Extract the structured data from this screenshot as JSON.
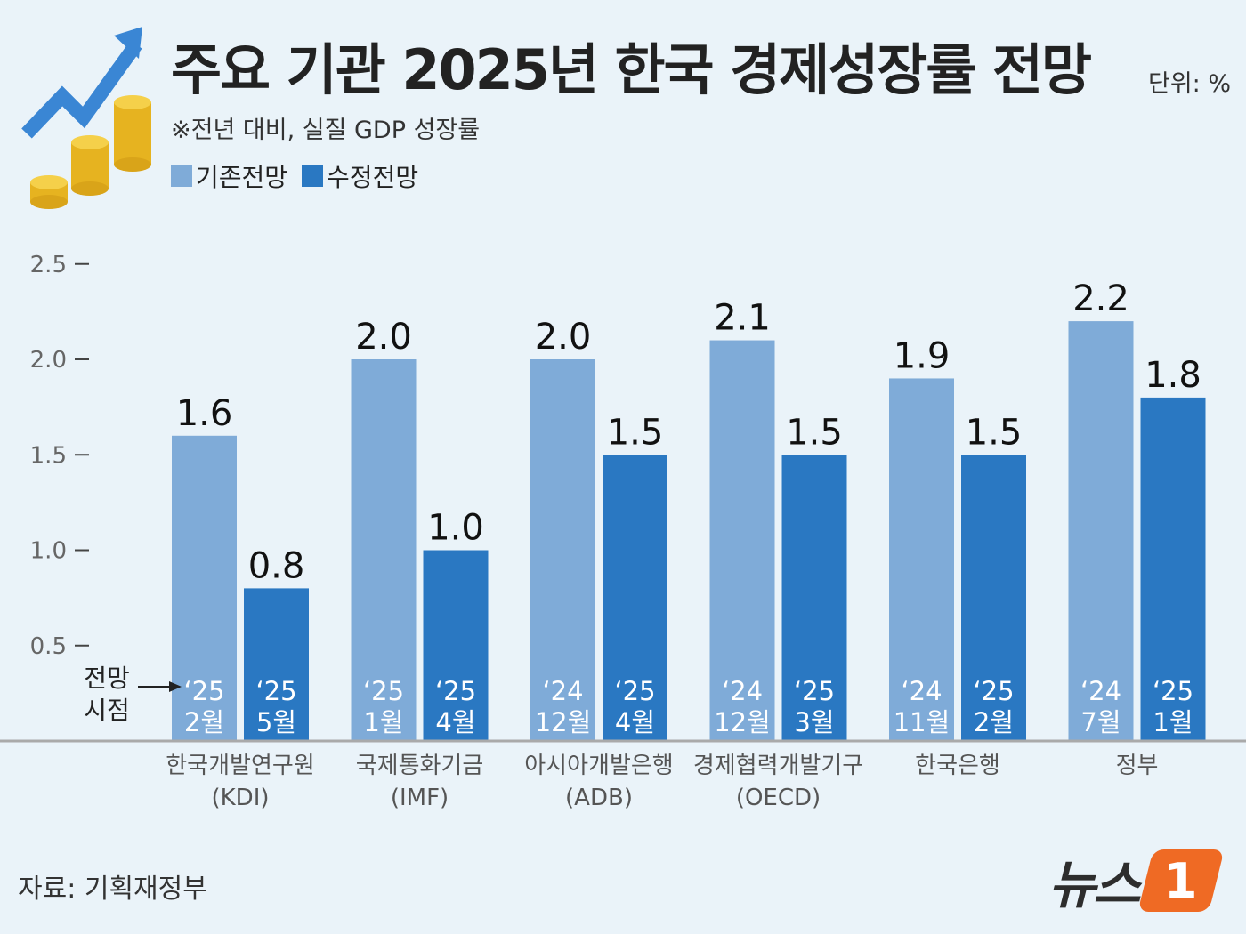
{
  "title": "주요 기관 2025년 한국 경제성장률 전망",
  "unit": "단위: %",
  "subtitle": "※전년 대비, 실질 GDP 성장률",
  "legend": {
    "previous": "기존전망",
    "revised": "수정전망"
  },
  "annotation": {
    "line1": "전망",
    "line2": "시점"
  },
  "source": "자료: 기획재정부",
  "logo": {
    "text": "뉴스",
    "mark": "1"
  },
  "colors": {
    "previous": "#7fabd8",
    "revised": "#2a78c2",
    "background": "#eaf3f9",
    "coin": "#f2c230",
    "arrow": "#3a86d4"
  },
  "chart_data": {
    "type": "bar",
    "title": "주요 기관 2025년 한국 경제성장률 전망",
    "subtitle": "※전년 대비, 실질 GDP 성장률",
    "unit": "단위: %",
    "ylim": [
      0,
      2.5
    ],
    "yticks": [
      "0.5",
      "1.0",
      "1.5",
      "2.0",
      "2.5"
    ],
    "categories": [
      [
        "한국개발연구원",
        "(KDI)"
      ],
      [
        "국제통화기금",
        "(IMF)"
      ],
      [
        "아시아개발은행",
        "(ADB)"
      ],
      [
        "경제협력개발기구",
        "(OECD)"
      ],
      [
        "한국은행",
        ""
      ],
      [
        "정부",
        ""
      ]
    ],
    "series": [
      {
        "name": "기존전망",
        "values": [
          1.6,
          2.0,
          2.0,
          2.1,
          1.9,
          2.2
        ],
        "labels": [
          "1.6",
          "2.0",
          "2.0",
          "2.1",
          "1.9",
          "2.2"
        ],
        "dates": [
          [
            "‘25",
            "2월"
          ],
          [
            "‘25",
            "1월"
          ],
          [
            "‘24",
            "12월"
          ],
          [
            "‘24",
            "12월"
          ],
          [
            "‘24",
            "11월"
          ],
          [
            "‘24",
            "7월"
          ]
        ]
      },
      {
        "name": "수정전망",
        "values": [
          0.8,
          1.0,
          1.5,
          1.5,
          1.5,
          1.8
        ],
        "labels": [
          "0.8",
          "1.0",
          "1.5",
          "1.5",
          "1.5",
          "1.8"
        ],
        "dates": [
          [
            "‘25",
            "5월"
          ],
          [
            "‘25",
            "4월"
          ],
          [
            "‘25",
            "4월"
          ],
          [
            "‘25",
            "3월"
          ],
          [
            "‘25",
            "2월"
          ],
          [
            "‘25",
            "1월"
          ]
        ]
      }
    ],
    "grid": false,
    "legend_position": "top-left"
  }
}
